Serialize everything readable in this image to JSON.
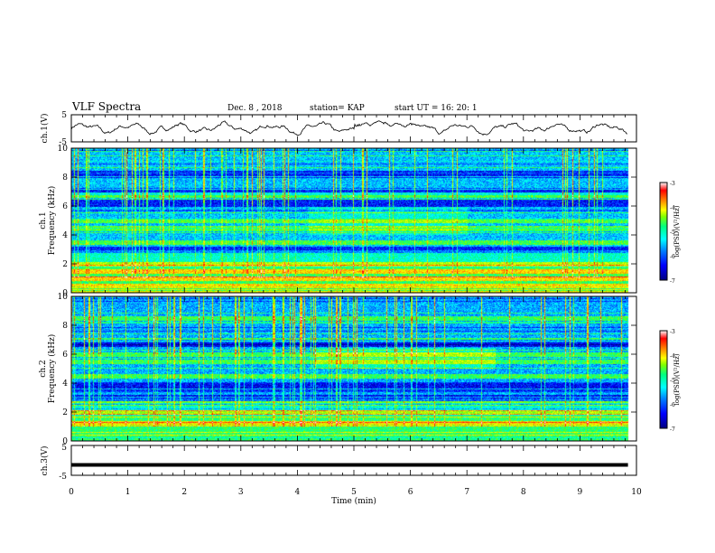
{
  "header": {
    "title": "VLF Spectra",
    "date": "Dec. 8 , 2018",
    "station": "station= KAP",
    "start": "start  UT =    16: 20: 1"
  },
  "chart_data": [
    {
      "type": "line",
      "name": "ch1-waveform",
      "ylabel": "ch.1(V)",
      "ylim": [
        -5,
        5
      ],
      "yticks": [
        "5",
        "-5"
      ],
      "xlim": [
        0,
        10
      ]
    },
    {
      "type": "heatmap",
      "name": "ch1-spectrogram",
      "ylabel": "ch.1\nFrequency (kHz)",
      "ylabel_line1": "ch.1",
      "ylabel_line2": "Frequency  (kHz)",
      "ylim": [
        0,
        10
      ],
      "yticks": [
        "0",
        "2",
        "4",
        "6",
        "8",
        "10"
      ],
      "xlim": [
        0,
        10
      ],
      "colorbar": {
        "label": "log(PSD)(V²/Hz)",
        "range": [
          -7,
          -3
        ],
        "ticks": [
          "-3",
          "-4",
          "-5",
          "-6",
          "-7"
        ]
      },
      "bright_bands_khz": [
        0.5,
        1.0,
        1.5,
        2.0,
        3.5,
        4.5,
        5.0,
        6.8
      ],
      "dark_bands_khz": [
        3.0,
        6.2,
        7.0,
        8.2
      ]
    },
    {
      "type": "heatmap",
      "name": "ch2-spectrogram",
      "ylabel_line1": "ch.2",
      "ylabel_line2": "Frequency  (kHz)",
      "ylim": [
        0,
        10
      ],
      "yticks": [
        "0",
        "2",
        "4",
        "6",
        "8",
        "10"
      ],
      "xlim": [
        0,
        10
      ],
      "colorbar": {
        "label": "log(PSD)(V²/Hz)",
        "range": [
          -7,
          -3
        ],
        "ticks": [
          "-3",
          "-4",
          "-5",
          "-6",
          "-7"
        ]
      },
      "bright_bands_khz": [
        1.2,
        2.0,
        4.5,
        5.5,
        6.0,
        7.0,
        8.5
      ],
      "dark_bands_khz": [
        3.0,
        3.8,
        6.8
      ]
    },
    {
      "type": "line",
      "name": "ch3-waveform",
      "ylabel": "ch.3(V)",
      "ylim": [
        -5,
        5
      ],
      "yticks": [
        "5",
        "-5"
      ],
      "xlim": [
        0,
        10
      ],
      "level_v": -1.5
    }
  ],
  "xaxis": {
    "label": "Time  (min)",
    "ticks": [
      "0",
      "1",
      "2",
      "3",
      "4",
      "5",
      "6",
      "7",
      "8",
      "9",
      "10"
    ],
    "data_end_min": 9.85
  },
  "colors": {
    "scale": [
      "#000080",
      "#0000ff",
      "#0080ff",
      "#00ffff",
      "#00ff80",
      "#80ff00",
      "#ffff00",
      "#ff8000",
      "#ff0000",
      "#ffffff"
    ],
    "ink": "#000000"
  }
}
